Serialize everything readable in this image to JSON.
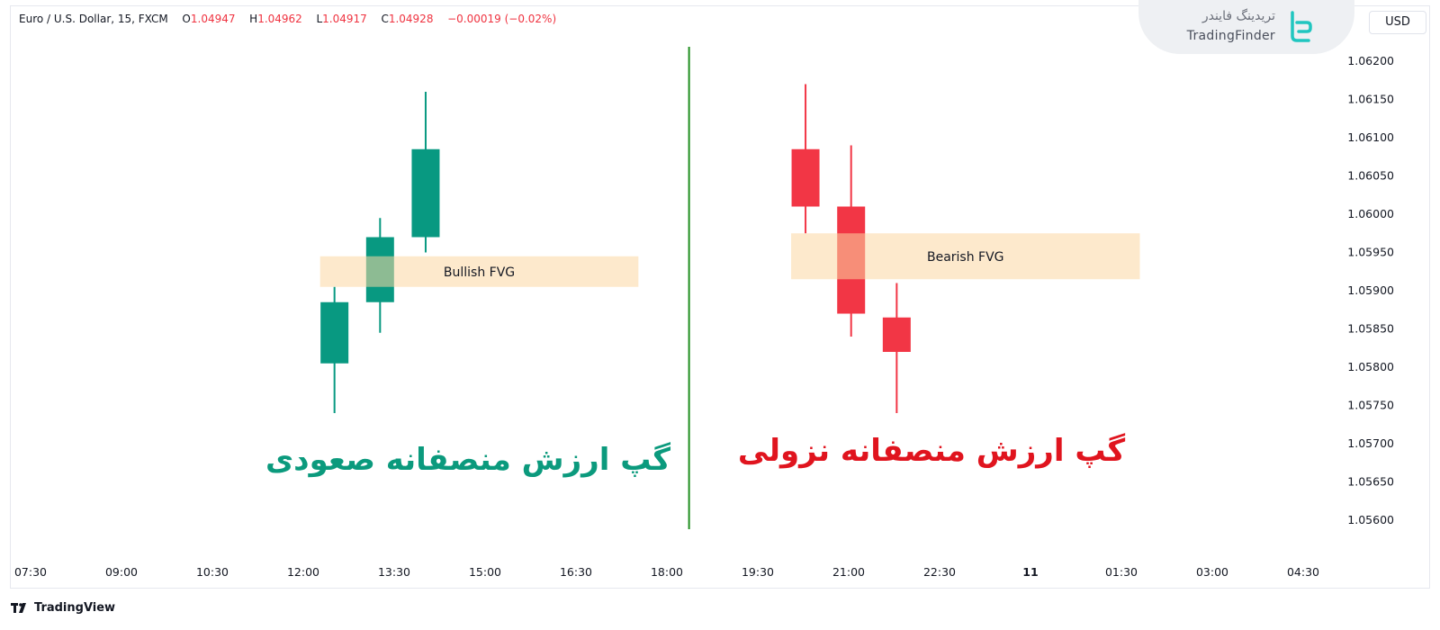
{
  "header": {
    "symbol": "Euro / U.S. Dollar, 15, FXCM",
    "o_label": "O",
    "o_value": "1.04947",
    "h_label": "H",
    "h_value": "1.04962",
    "l_label": "L",
    "l_value": "1.04917",
    "c_label": "C",
    "c_value": "1.04928",
    "change": "−0.00019 (−0.02%)"
  },
  "currency_button": "USD",
  "watermark": {
    "name_fa": "تریدینگ فایندر",
    "name_en": "TradingFinder"
  },
  "brand": "TradingView",
  "colors": {
    "bull": "#089981",
    "bear": "#f23645",
    "fvg_zone": "#fde8c8",
    "divider": "#1f8f1f",
    "bull_label": "#0b9a7d",
    "bear_label": "#e0141e"
  },
  "chart_data": {
    "type": "candlestick",
    "y_ticks": [
      "1.06200",
      "1.06150",
      "1.06100",
      "1.06050",
      "1.06000",
      "1.05950",
      "1.05900",
      "1.05850",
      "1.05800",
      "1.05750",
      "1.05700",
      "1.05650",
      "1.05600"
    ],
    "x_ticks": [
      "07:30",
      "09:00",
      "10:30",
      "12:00",
      "13:30",
      "15:00",
      "16:30",
      "18:00",
      "19:30",
      "21:00",
      "22:30",
      "11",
      "01:30",
      "03:00",
      "04:30"
    ],
    "ylim": [
      1.05575,
      1.06225
    ],
    "candles": [
      {
        "name": "bull-1",
        "time": "12:30",
        "open": 1.05805,
        "high": 1.05905,
        "low": 1.0574,
        "close": 1.05885
      },
      {
        "name": "bull-2",
        "time": "13:15",
        "open": 1.05885,
        "high": 1.05995,
        "low": 1.05845,
        "close": 1.0597
      },
      {
        "name": "bull-3",
        "time": "14:00",
        "open": 1.0597,
        "high": 1.0616,
        "low": 1.0595,
        "close": 1.06085
      },
      {
        "name": "bear-1",
        "time": "20:15",
        "open": 1.06085,
        "high": 1.0617,
        "low": 1.05975,
        "close": 1.0601
      },
      {
        "name": "bear-2",
        "time": "21:00",
        "open": 1.0601,
        "high": 1.0609,
        "low": 1.0584,
        "close": 1.0587
      },
      {
        "name": "bear-3",
        "time": "21:45",
        "open": 1.05865,
        "high": 1.0591,
        "low": 1.0574,
        "close": 1.0582
      }
    ],
    "zones": [
      {
        "name": "bullish-fvg",
        "label": "Bullish FVG",
        "from_time": "12:30",
        "to_time": "17:30",
        "top": 1.05945,
        "bottom": 1.05905
      },
      {
        "name": "bearish-fvg",
        "label": "Bearish FVG",
        "from_time": "20:15",
        "to_time": "01:45",
        "top": 1.05975,
        "bottom": 1.05915
      }
    ],
    "divider_time": "18:20",
    "annotations": {
      "bullish_title": "گپ ارزش منصفانه صعودی",
      "bearish_title": "گپ ارزش منصفانه نزولی"
    }
  }
}
